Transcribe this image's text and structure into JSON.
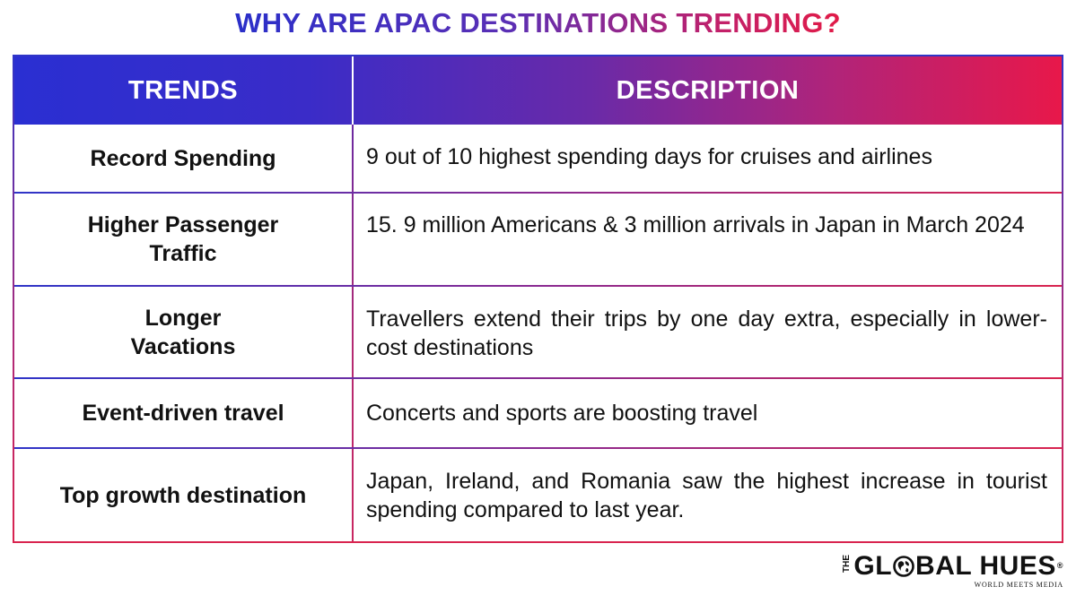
{
  "title": "WHY ARE APAC DESTINATIONS TRENDING?",
  "table": {
    "headers": {
      "trends": "TRENDS",
      "description": "DESCRIPTION"
    },
    "rows": [
      {
        "trend": "Record Spending",
        "description": "9 out of 10 highest spending days for cruises and airlines"
      },
      {
        "trend": "Higher Passenger Traffic",
        "description": "15. 9 million Americans & 3 million arrivals in Japan in March 2024"
      },
      {
        "trend": "Longer Vacations",
        "description": "Travellers extend their trips by one day extra, especially in lower-cost destinations"
      },
      {
        "trend": "Event-driven travel",
        "description": "Concerts and sports are boosting travel"
      },
      {
        "trend": "Top growth destination",
        "description": "Japan, Ireland, and Romania saw the highest increase in tourist spending compared to last year."
      }
    ]
  },
  "logo": {
    "the": "THE",
    "word_left": "GL",
    "word_right": "BAL HUES",
    "registered": "®",
    "tagline": "WORLD MEETS MEDIA",
    "icon": "globe-icon"
  },
  "colors": {
    "gradient_start": "#2a2fd2",
    "gradient_end": "#e8184a",
    "text": "#111111"
  }
}
